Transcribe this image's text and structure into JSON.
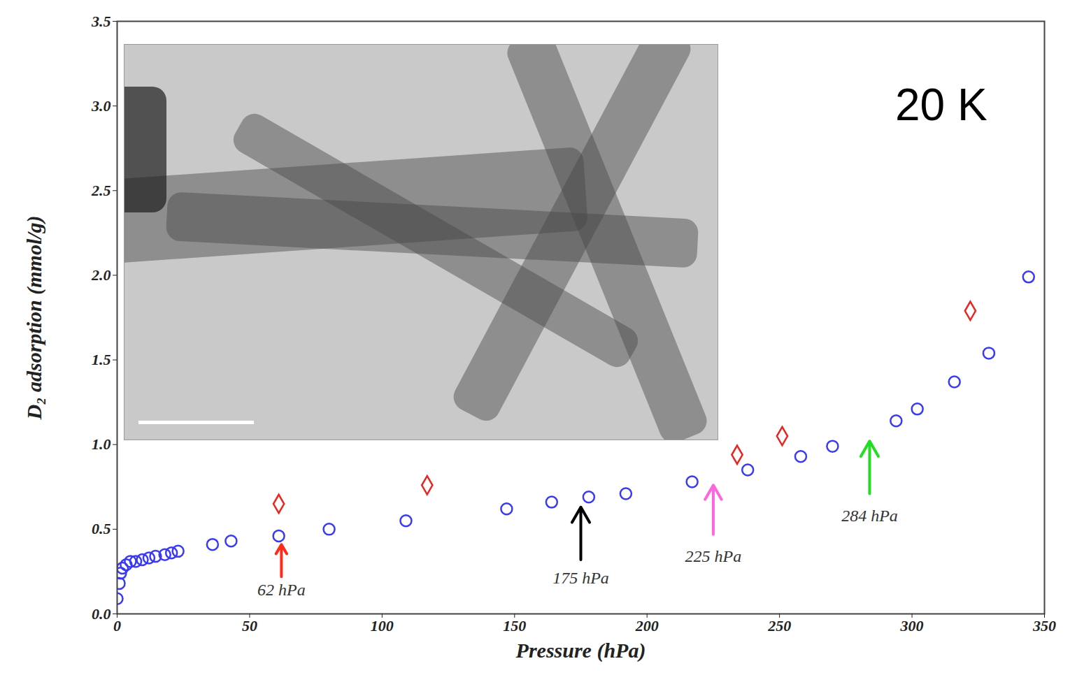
{
  "chart_data": {
    "type": "scatter",
    "x_label": "Pressure (hPa)",
    "y_label": "D₂ adsorption (mmol/g)",
    "xlim": [
      0,
      350
    ],
    "xticks": [
      0,
      50,
      100,
      150,
      200,
      250,
      300,
      350
    ],
    "ylim": [
      0,
      3.5
    ],
    "yticks": [
      {
        "value": 0,
        "label": "0.0"
      },
      0.5,
      {
        "value": 1,
        "label": "1.0"
      },
      1.5,
      {
        "value": 2,
        "label": "2.0"
      },
      2.5,
      {
        "value": 3,
        "label": "3.0"
      },
      3.5
    ],
    "grid": false,
    "series": [
      {
        "color": "#3a3af2",
        "marker": "circle",
        "x": [
          0,
          0.8,
          1.3,
          2,
          3.4,
          5,
          7,
          9.5,
          12,
          14.5,
          18,
          20.5,
          23,
          36,
          43,
          61,
          80,
          109,
          147,
          164,
          178,
          192,
          217,
          238,
          258,
          270,
          294,
          302,
          316,
          329,
          344
        ],
        "values": [
          0.09,
          0.18,
          0.24,
          0.27,
          0.29,
          0.31,
          0.31,
          0.32,
          0.33,
          0.34,
          0.35,
          0.36,
          0.37,
          0.41,
          0.43,
          0.46,
          0.5,
          0.55,
          0.62,
          0.66,
          0.69,
          0.71,
          0.78,
          0.85,
          0.93,
          0.99,
          1.14,
          1.21,
          1.37,
          1.54,
          1.99
        ]
      },
      {
        "color": "#e8261f",
        "marker": "diamond",
        "x": [
          61,
          117,
          234,
          251,
          322
        ],
        "values": [
          0.65,
          0.76,
          0.94,
          1.05,
          1.79
        ]
      }
    ],
    "annotations": [
      {
        "text": "62 hPa",
        "x": 62,
        "y_tail": 0.22,
        "y_tip": 0.41,
        "y_text": 0.14,
        "color": "#ff2a1a"
      },
      {
        "text": "175 hPa",
        "x": 175,
        "y_tail": 0.32,
        "y_tip": 0.63,
        "y_text": 0.21,
        "color": "#000000"
      },
      {
        "text": "225 hPa",
        "x": 225,
        "y_tail": 0.47,
        "y_tip": 0.76,
        "y_text": 0.34,
        "color": "#ff66dd"
      },
      {
        "text": "284 hPa",
        "x": 284,
        "y_tail": 0.71,
        "y_tip": 1.02,
        "y_text": 0.58,
        "color": "#22dd22"
      },
      {
        "text": "20 K",
        "x": 311,
        "y": 3.0
      }
    ]
  }
}
